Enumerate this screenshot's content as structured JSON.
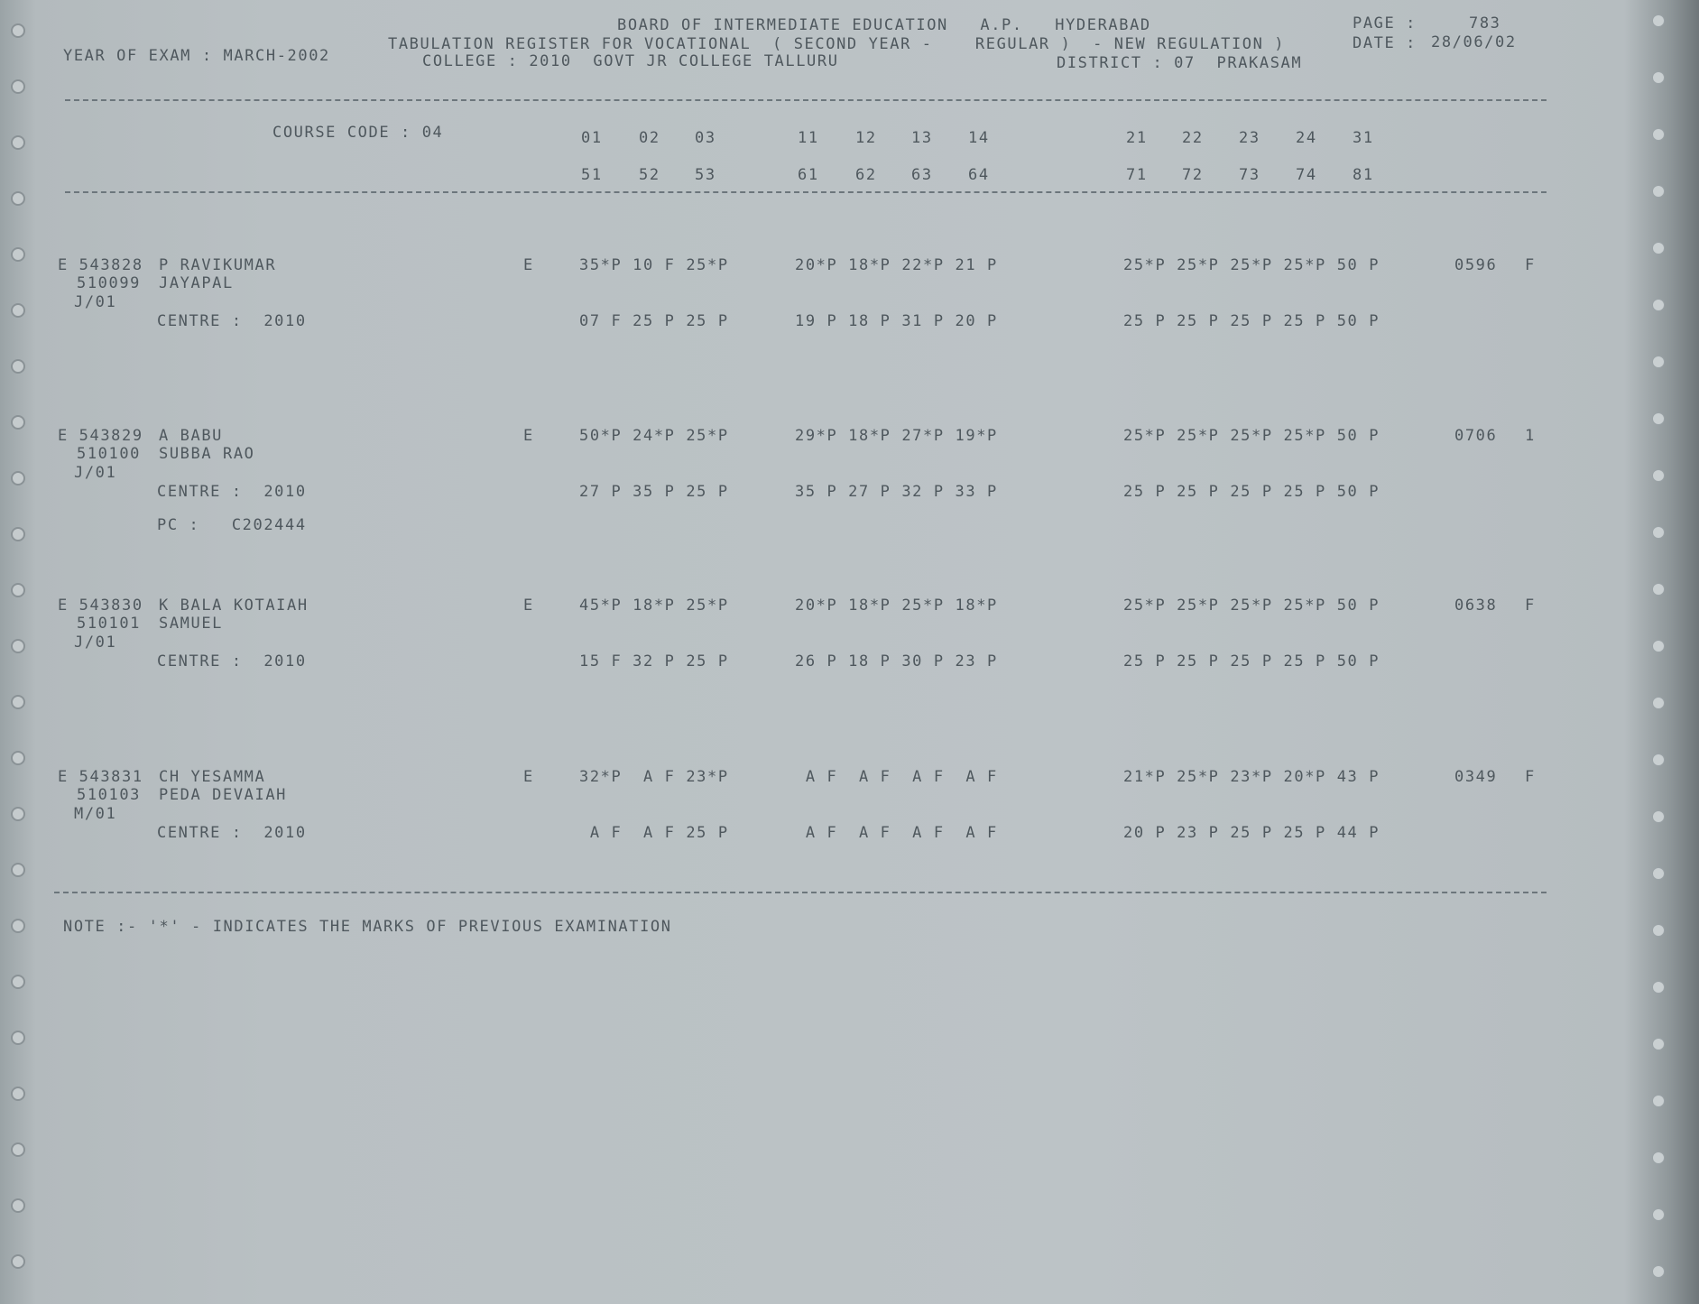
{
  "header": {
    "board": "BOARD OF INTERMEDIATE EDUCATION   A.P.   HYDERABAD",
    "page_label": "PAGE :",
    "page_number": "783",
    "register_title": "TABULATION REGISTER FOR VOCATIONAL  ( SECOND YEAR -    REGULAR )  - NEW REGULATION )",
    "date_label": "DATE :",
    "date": "28/06/02",
    "year_of_exam": "YEAR OF EXAM : MARCH-2002",
    "college": "COLLEGE : 2010  GOVT JR COLLEGE TALLURU",
    "district": "DISTRICT : 07  PRAKASAM"
  },
  "columns": {
    "course_code": "COURSE CODE : 04",
    "row1": [
      "01",
      "02",
      "03",
      "11",
      "12",
      "13",
      "14",
      "21",
      "22",
      "23",
      "24",
      "31"
    ],
    "row2": [
      "51",
      "52",
      "53",
      "61",
      "62",
      "63",
      "64",
      "71",
      "72",
      "73",
      "74",
      "81"
    ]
  },
  "students": [
    {
      "roll": "E 543828",
      "code": "510099",
      "group": "J/01",
      "name": "P RAVIKUMAR",
      "father": "JAYAPAL",
      "centre": "CENTRE :  2010",
      "stream": "E",
      "marks1": [
        "35*P 10 F 25*P",
        "20*P 18*P 22*P 21 P",
        "25*P 25*P 25*P 25*P 50 P"
      ],
      "marks2": [
        "07 F 25 P 25 P",
        "19 P 18 P 31 P 20 P",
        "25 P 25 P 25 P 25 P 50 P"
      ],
      "total": "0596",
      "result": "F",
      "pc": ""
    },
    {
      "roll": "E 543829",
      "code": "510100",
      "group": "J/01",
      "name": "A BABU",
      "father": "SUBBA RAO",
      "centre": "CENTRE :  2010",
      "stream": "E",
      "marks1": [
        "50*P 24*P 25*P",
        "29*P 18*P 27*P 19*P",
        "25*P 25*P 25*P 25*P 50 P"
      ],
      "marks2": [
        "27 P 35 P 25 P",
        "35 P 27 P 32 P 33 P",
        "25 P 25 P 25 P 25 P 50 P"
      ],
      "total": "0706",
      "result": "1",
      "pc": "PC :   C202444"
    },
    {
      "roll": "E 543830",
      "code": "510101",
      "group": "J/01",
      "name": "K BALA KOTAIAH",
      "father": "SAMUEL",
      "centre": "CENTRE :  2010",
      "stream": "E",
      "marks1": [
        "45*P 18*P 25*P",
        "20*P 18*P 25*P 18*P",
        "25*P 25*P 25*P 25*P 50 P"
      ],
      "marks2": [
        "15 F 32 P 25 P",
        "26 P 18 P 30 P 23 P",
        "25 P 25 P 25 P 25 P 50 P"
      ],
      "total": "0638",
      "result": "F",
      "pc": ""
    },
    {
      "roll": "E 543831",
      "code": "510103",
      "group": "M/01",
      "name": "CH YESAMMA",
      "father": "PEDA DEVAIAH",
      "centre": "CENTRE :  2010",
      "stream": "E",
      "marks1": [
        "32*P  A F 23*P",
        " A F  A F  A F  A F",
        "21*P 25*P 23*P 20*P 43 P"
      ],
      "marks2": [
        " A F  A F 25 P",
        " A F  A F  A F  A F",
        "20 P 23 P 25 P 25 P 44 P"
      ],
      "total": "0349",
      "result": "F",
      "pc": ""
    }
  ],
  "note": "NOTE :- '*' - INDICATES THE MARKS OF PREVIOUS EXAMINATION"
}
